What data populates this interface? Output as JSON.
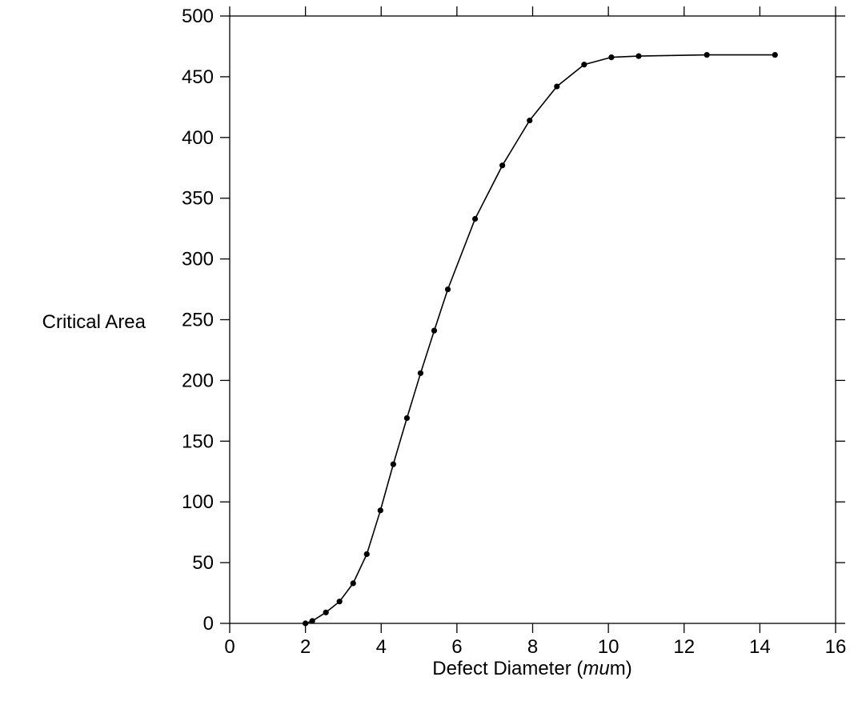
{
  "chart_data": {
    "type": "line",
    "title": "",
    "xlabel_parts": [
      "Defect Diameter (",
      "mu",
      "m)"
    ],
    "ylabel": "Critical Area",
    "xlim": [
      0,
      16
    ],
    "ylim": [
      0,
      500
    ],
    "x_ticks": [
      0,
      2,
      4,
      6,
      8,
      10,
      12,
      14,
      16
    ],
    "y_ticks": [
      0,
      50,
      100,
      150,
      200,
      250,
      300,
      350,
      400,
      450,
      500
    ],
    "grid": false,
    "legend": "none",
    "series": [
      {
        "x": [
          2.0,
          2.18,
          2.54,
          2.9,
          3.26,
          3.62,
          3.98,
          4.32,
          4.68,
          5.04,
          5.4,
          5.76,
          6.48,
          7.2,
          7.92,
          8.64,
          9.36,
          10.08,
          10.8,
          12.6,
          14.4
        ],
        "y": [
          0,
          2,
          9,
          18,
          33,
          57,
          93,
          131,
          169,
          206,
          241,
          275,
          333,
          377,
          414,
          442,
          460,
          466,
          467,
          468,
          468
        ]
      }
    ]
  }
}
